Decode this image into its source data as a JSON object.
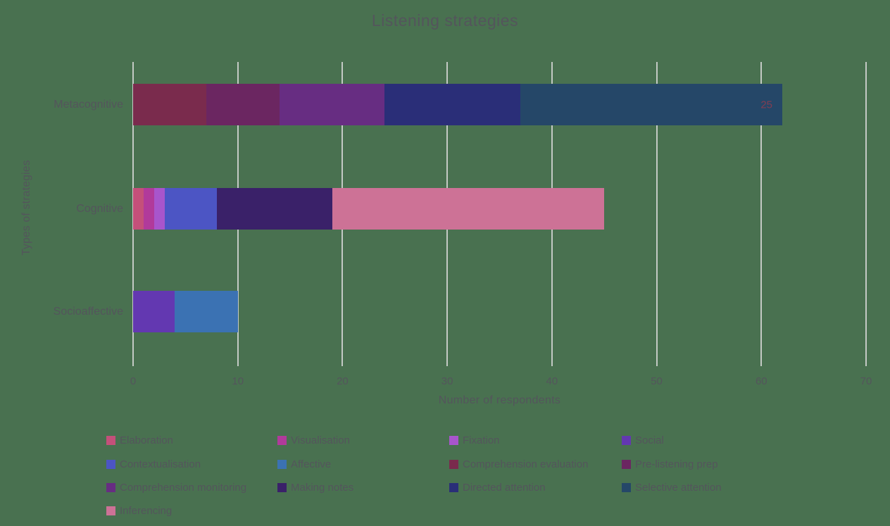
{
  "title": "Listening strategies",
  "x_axis": {
    "label": "Number of respondents",
    "ticks": [
      0,
      10,
      20,
      30,
      40,
      50,
      60,
      70
    ],
    "max": 70
  },
  "y_axis": {
    "label": "Types of strategies"
  },
  "colors": {
    "background": "#497150",
    "gridline": "#d9d9d9",
    "text": "#54555c",
    "value_label": "#8c3c50"
  },
  "legend": [
    {
      "label": "Elaboration",
      "color": "#c4507a"
    },
    {
      "label": "Visualisation",
      "color": "#b13a9b"
    },
    {
      "label": "Fixation",
      "color": "#a855cc"
    },
    {
      "label": "Social",
      "color": "#6338b1"
    },
    {
      "label": "Contextualisation",
      "color": "#4c55c4"
    },
    {
      "label": "Affective",
      "color": "#3b72b3"
    },
    {
      "label": "Comprehension evaluation",
      "color": "#7a2b4d"
    },
    {
      "label": "Pre-listening prep",
      "color": "#6b2661"
    },
    {
      "label": "Comprehension monitoring",
      "color": "#672d82"
    },
    {
      "label": "Making notes",
      "color": "#3a2169"
    },
    {
      "label": "Directed attention",
      "color": "#2a2e78"
    },
    {
      "label": "Selective attention",
      "color": "#254768"
    },
    {
      "label": "Inferencing",
      "color": "#cd7296"
    }
  ],
  "bars": [
    {
      "category": "Metacognitive",
      "segments": [
        {
          "series": "Comprehension evaluation",
          "value": 7
        },
        {
          "series": "Pre-listening prep",
          "value": 7
        },
        {
          "series": "Comprehension monitoring",
          "value": 10
        },
        {
          "series": "Directed attention",
          "value": 13
        },
        {
          "series": "Selective attention",
          "value": 25,
          "label": "25"
        }
      ]
    },
    {
      "category": "Cognitive",
      "segments": [
        {
          "series": "Elaboration",
          "value": 1
        },
        {
          "series": "Visualisation",
          "value": 1
        },
        {
          "series": "Fixation",
          "value": 1
        },
        {
          "series": "Contextualisation",
          "value": 5
        },
        {
          "series": "Making notes",
          "value": 11
        },
        {
          "series": "Inferencing",
          "value": 26
        }
      ]
    },
    {
      "category": "Socioaffective",
      "segments": [
        {
          "series": "Social",
          "value": 4
        },
        {
          "series": "Affective",
          "value": 6
        }
      ]
    }
  ],
  "chart_data": {
    "type": "bar",
    "orientation": "horizontal",
    "stacked": true,
    "title": "Listening strategies",
    "xlabel": "Number of respondents",
    "ylabel": "Types of strategies",
    "xlim": [
      0,
      70
    ],
    "grid": "vertical",
    "legend_position": "bottom",
    "categories": [
      "Metacognitive",
      "Cognitive",
      "Socioaffective"
    ],
    "series": [
      {
        "name": "Elaboration",
        "values": [
          0,
          1,
          0
        ]
      },
      {
        "name": "Visualisation",
        "values": [
          0,
          1,
          0
        ]
      },
      {
        "name": "Fixation",
        "values": [
          0,
          1,
          0
        ]
      },
      {
        "name": "Social",
        "values": [
          0,
          0,
          4
        ]
      },
      {
        "name": "Contextualisation",
        "values": [
          0,
          5,
          0
        ]
      },
      {
        "name": "Affective",
        "values": [
          0,
          0,
          6
        ]
      },
      {
        "name": "Comprehension evaluation",
        "values": [
          7,
          0,
          0
        ]
      },
      {
        "name": "Pre-listening prep",
        "values": [
          7,
          0,
          0
        ]
      },
      {
        "name": "Comprehension monitoring",
        "values": [
          10,
          0,
          0
        ]
      },
      {
        "name": "Making notes",
        "values": [
          0,
          11,
          0
        ]
      },
      {
        "name": "Directed attention",
        "values": [
          13,
          0,
          0
        ]
      },
      {
        "name": "Selective attention",
        "values": [
          25,
          0,
          0
        ]
      },
      {
        "name": "Inferencing",
        "values": [
          0,
          26,
          0
        ]
      }
    ],
    "totals": [
      62,
      45,
      10
    ],
    "annotations": [
      {
        "text": "25",
        "category": "Metacognitive",
        "series": "Selective attention"
      }
    ]
  }
}
